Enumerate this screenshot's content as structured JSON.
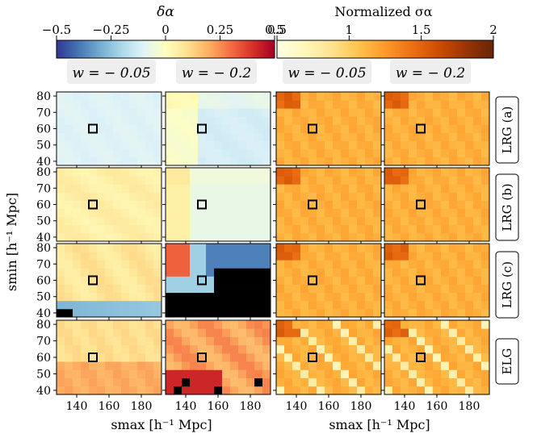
{
  "figure": {
    "colorbar_left": {
      "label": "δα",
      "ticks": [
        "−0.5",
        "−0.25",
        "0",
        "0.25",
        "0.5"
      ],
      "range": [
        -0.5,
        0.5
      ],
      "colormap": [
        "#313695",
        "#4575b4",
        "#74add1",
        "#abd9e9",
        "#e0f3f8",
        "#ffffbf",
        "#fee090",
        "#fdae61",
        "#f46d43",
        "#d73027",
        "#a50026"
      ]
    },
    "colorbar_right": {
      "label": "Normalized σα",
      "ticks": [
        "0.5",
        "1",
        "1.5",
        "2"
      ],
      "range": [
        0.5,
        2.0
      ],
      "colormap": [
        "#ffffe5",
        "#fff7bc",
        "#fee391",
        "#fec44f",
        "#fe9929",
        "#ec7014",
        "#cc4c02",
        "#993404",
        "#662506"
      ]
    },
    "column_headers": [
      "w = − 0.05",
      "w = − 0.2",
      "w = − 0.05",
      "w = − 0.2"
    ],
    "row_labels": [
      "LRG (a)",
      "LRG (b)",
      "LRG (c)",
      "ELG"
    ],
    "xlabel": "smax [h⁻¹ Mpc]",
    "ylabel": "smin [h⁻¹ Mpc]",
    "x_ticks": [
      "140",
      "160",
      "180"
    ],
    "y_ticks": [
      "80",
      "70",
      "60",
      "50",
      "40"
    ],
    "marker": {
      "smax": 150,
      "smin": 60
    }
  },
  "chart_data": {
    "type": "heatmap",
    "xlabel": "smax [h⁻¹ Mpc]",
    "ylabel": "smin [h⁻¹ Mpc]",
    "x_values": [
      130,
      135,
      140,
      145,
      150,
      155,
      160,
      165,
      170,
      175,
      180,
      185,
      190
    ],
    "y_values": [
      40,
      45,
      50,
      55,
      60,
      65,
      70,
      75,
      80
    ],
    "marker_cell": {
      "smax": 150,
      "smin": 60
    },
    "panels_delta_alpha": [
      {
        "row": "LRG (a)",
        "w": "−0.05",
        "mean": -0.08
      },
      {
        "row": "LRG (a)",
        "w": "−0.2",
        "mean": -0.05
      },
      {
        "row": "LRG (b)",
        "w": "−0.05",
        "mean": 0.05
      },
      {
        "row": "LRG (b)",
        "w": "−0.2",
        "mean": 0.0
      },
      {
        "row": "LRG (c)",
        "w": "−0.05",
        "mean": 0.05
      },
      {
        "row": "LRG (c)",
        "w": "−0.2",
        "mean": -0.1
      },
      {
        "row": "ELG",
        "w": "−0.05",
        "mean": 0.12
      },
      {
        "row": "ELG",
        "w": "−0.2",
        "mean": 0.25
      }
    ],
    "panels_norm_sigma": [
      {
        "row": "LRG (a)",
        "w": "−0.05",
        "mean": 1.2
      },
      {
        "row": "LRG (a)",
        "w": "−0.2",
        "mean": 1.25
      },
      {
        "row": "LRG (b)",
        "w": "−0.05",
        "mean": 1.2
      },
      {
        "row": "LRG (b)",
        "w": "−0.2",
        "mean": 1.25
      },
      {
        "row": "LRG (c)",
        "w": "−0.05",
        "mean": 1.15
      },
      {
        "row": "LRG (c)",
        "w": "−0.2",
        "mean": 1.2
      },
      {
        "row": "ELG",
        "w": "−0.05",
        "mean": 1.1
      },
      {
        "row": "ELG",
        "w": "−0.2",
        "mean": 1.15
      }
    ]
  }
}
